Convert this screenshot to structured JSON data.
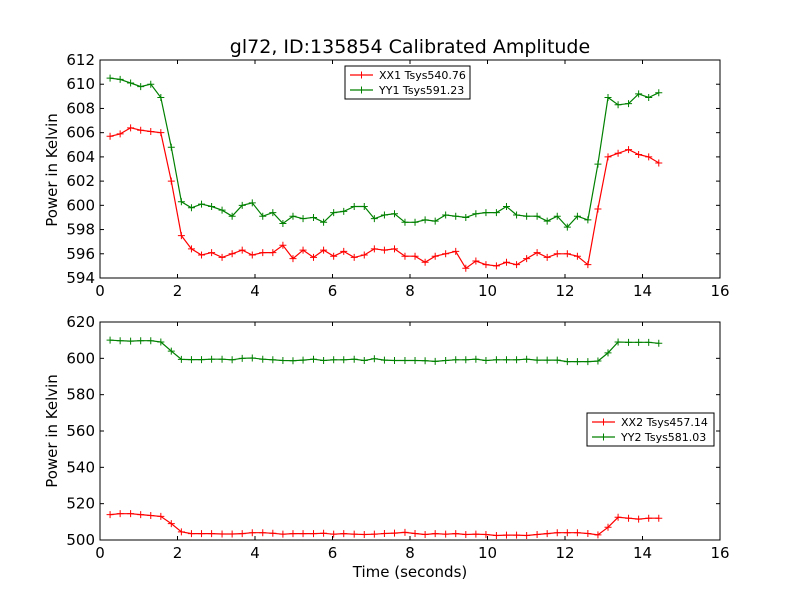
{
  "figure_title": "gl72, ID:135854 Calibrated Amplitude",
  "x_axis_label": "Time (seconds)",
  "chart_data": [
    {
      "type": "line",
      "title": "gl72, ID:135854 Calibrated Amplitude",
      "xlabel": "",
      "ylabel": "Power in Kelvin",
      "xlim": [
        0,
        16
      ],
      "ylim": [
        594,
        612
      ],
      "xticks": [
        0,
        2,
        4,
        6,
        8,
        10,
        12,
        14,
        16
      ],
      "yticks": [
        594,
        596,
        598,
        600,
        602,
        604,
        606,
        608,
        610,
        612
      ],
      "legend_position": "top-center",
      "grid": false,
      "x": [
        0.26,
        0.52,
        0.79,
        1.05,
        1.31,
        1.57,
        1.84,
        2.1,
        2.36,
        2.62,
        2.88,
        3.15,
        3.41,
        3.67,
        3.93,
        4.2,
        4.46,
        4.72,
        4.98,
        5.24,
        5.51,
        5.77,
        6.03,
        6.29,
        6.56,
        6.82,
        7.08,
        7.34,
        7.6,
        7.87,
        8.13,
        8.39,
        8.65,
        8.92,
        9.18,
        9.44,
        9.7,
        9.96,
        10.23,
        10.49,
        10.75,
        11.01,
        11.28,
        11.54,
        11.8,
        12.06,
        12.32,
        12.59,
        12.85,
        13.11,
        13.37,
        13.64,
        13.9,
        14.16,
        14.42,
        14.68
      ],
      "series": [
        {
          "name": "XX1 Tsys540.76",
          "color": "#ff0000",
          "values": [
            605.7,
            605.9,
            606.4,
            606.2,
            606.1,
            606.0,
            602.0,
            597.5,
            596.4,
            595.9,
            596.1,
            595.7,
            596.0,
            596.3,
            595.9,
            596.1,
            596.1,
            596.7,
            595.6,
            596.3,
            595.7,
            596.3,
            595.8,
            596.2,
            595.7,
            595.9,
            596.4,
            596.3,
            596.4,
            595.8,
            595.8,
            595.3,
            595.8,
            596.0,
            596.2,
            594.8,
            595.4,
            595.1,
            595.0,
            595.3,
            595.1,
            595.6,
            596.1,
            595.7,
            596.0,
            596.0,
            595.8,
            595.1,
            599.7,
            604.0,
            604.3,
            604.6,
            604.2,
            604.0,
            603.5,
            603.5
          ],
          "plot_count": 55
        },
        {
          "name": "YY1 Tsys591.23",
          "color": "#008000",
          "values": [
            610.5,
            610.4,
            610.1,
            609.8,
            610.0,
            608.9,
            604.8,
            600.3,
            599.8,
            600.1,
            599.9,
            599.6,
            599.1,
            600.0,
            600.2,
            599.1,
            599.4,
            598.5,
            599.1,
            598.9,
            599.0,
            598.6,
            599.4,
            599.5,
            599.9,
            599.9,
            598.9,
            599.2,
            599.3,
            598.6,
            598.6,
            598.8,
            598.7,
            599.2,
            599.1,
            599.0,
            599.3,
            599.4,
            599.4,
            599.9,
            599.2,
            599.1,
            599.1,
            598.7,
            599.1,
            598.2,
            599.1,
            598.8,
            603.4,
            608.9,
            608.3,
            608.4,
            609.2,
            608.9,
            609.3,
            609.3
          ],
          "plot_count": 55
        }
      ]
    },
    {
      "type": "line",
      "title": "",
      "xlabel": "Time (seconds)",
      "ylabel": "Power in Kelvin",
      "xlim": [
        0,
        16
      ],
      "ylim": [
        500,
        620
      ],
      "xticks": [
        0,
        2,
        4,
        6,
        8,
        10,
        12,
        14,
        16
      ],
      "yticks": [
        500,
        520,
        540,
        560,
        580,
        600,
        620
      ],
      "legend_position": "center-right",
      "grid": false,
      "x": [
        0.26,
        0.52,
        0.79,
        1.05,
        1.31,
        1.57,
        1.84,
        2.1,
        2.36,
        2.62,
        2.88,
        3.15,
        3.41,
        3.67,
        3.93,
        4.2,
        4.46,
        4.72,
        4.98,
        5.24,
        5.51,
        5.77,
        6.03,
        6.29,
        6.56,
        6.82,
        7.08,
        7.34,
        7.6,
        7.87,
        8.13,
        8.39,
        8.65,
        8.92,
        9.18,
        9.44,
        9.7,
        9.96,
        10.23,
        10.49,
        10.75,
        11.01,
        11.28,
        11.54,
        11.8,
        12.06,
        12.32,
        12.59,
        12.85,
        13.11,
        13.37,
        13.64,
        13.9,
        14.16,
        14.42,
        14.68
      ],
      "series": [
        {
          "name": "XX2 Tsys457.14",
          "color": "#ff0000",
          "values": [
            514,
            514.5,
            514.5,
            514,
            513.5,
            513,
            509,
            504.5,
            503.5,
            503.5,
            503.5,
            503.3,
            503.3,
            503.5,
            504,
            504,
            503.7,
            503.2,
            503.5,
            503.5,
            503.5,
            503.7,
            503.2,
            503.5,
            503.2,
            503,
            503.2,
            503.6,
            503.8,
            504.2,
            503.6,
            503,
            503.5,
            503.2,
            503.5,
            503,
            503.2,
            503,
            502.5,
            502.7,
            502.7,
            502.5,
            503,
            503.5,
            504,
            504,
            504,
            503.6,
            502.8,
            507,
            512.5,
            512,
            511.5,
            512,
            512,
            512
          ],
          "plot_count": 55
        },
        {
          "name": "YY2 Tsys581.03",
          "color": "#008000",
          "values": [
            610,
            609.7,
            609.5,
            609.7,
            609.7,
            609,
            604,
            599.4,
            599.3,
            599.3,
            599.5,
            599.5,
            599.2,
            600,
            600.2,
            599.5,
            599.2,
            598.8,
            598.7,
            599,
            599.5,
            598.8,
            599.2,
            599.2,
            599.5,
            598.8,
            599.8,
            599,
            598.8,
            598.8,
            598.8,
            598.7,
            598.3,
            598.8,
            599.2,
            599.2,
            599.5,
            598.8,
            599.2,
            599.2,
            599.2,
            599.5,
            599,
            599,
            599,
            598.2,
            598.2,
            598.2,
            598.5,
            603,
            609,
            608.8,
            608.8,
            608.8,
            608.3,
            608.5
          ],
          "plot_count": 55
        }
      ]
    }
  ]
}
